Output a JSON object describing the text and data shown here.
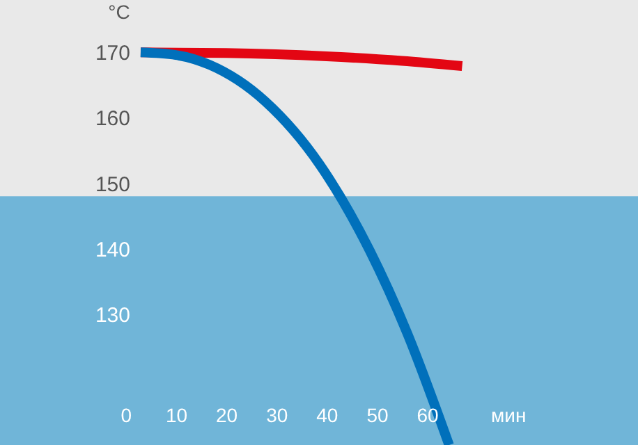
{
  "chart_data": {
    "type": "line",
    "xlabel": "мин",
    "ylabel": "°C",
    "xlim": [
      -25,
      102
    ],
    "ylim": [
      110,
      178
    ],
    "xticks": [
      0,
      10,
      20,
      30,
      40,
      50,
      60
    ],
    "yticks": [
      130,
      140,
      150,
      160,
      170
    ],
    "marker": "none",
    "line_style": "solid",
    "bands": [
      {
        "axis": "y",
        "from": 110,
        "to": 148,
        "color": "#70b5d8"
      }
    ],
    "series": [
      {
        "color": "#e30613",
        "x": [
          3,
          20,
          40,
          55,
          67
        ],
        "values": [
          170,
          169.9,
          169.4,
          168.7,
          167.9
        ]
      },
      {
        "color": "#0070bb",
        "x": [
          3,
          10,
          16.7,
          27.8,
          38.6,
          48.6,
          56,
          64.4
        ],
        "values": [
          170,
          169.6,
          168.1,
          162.5,
          152.9,
          139.7,
          127.2,
          110
        ]
      }
    ]
  }
}
